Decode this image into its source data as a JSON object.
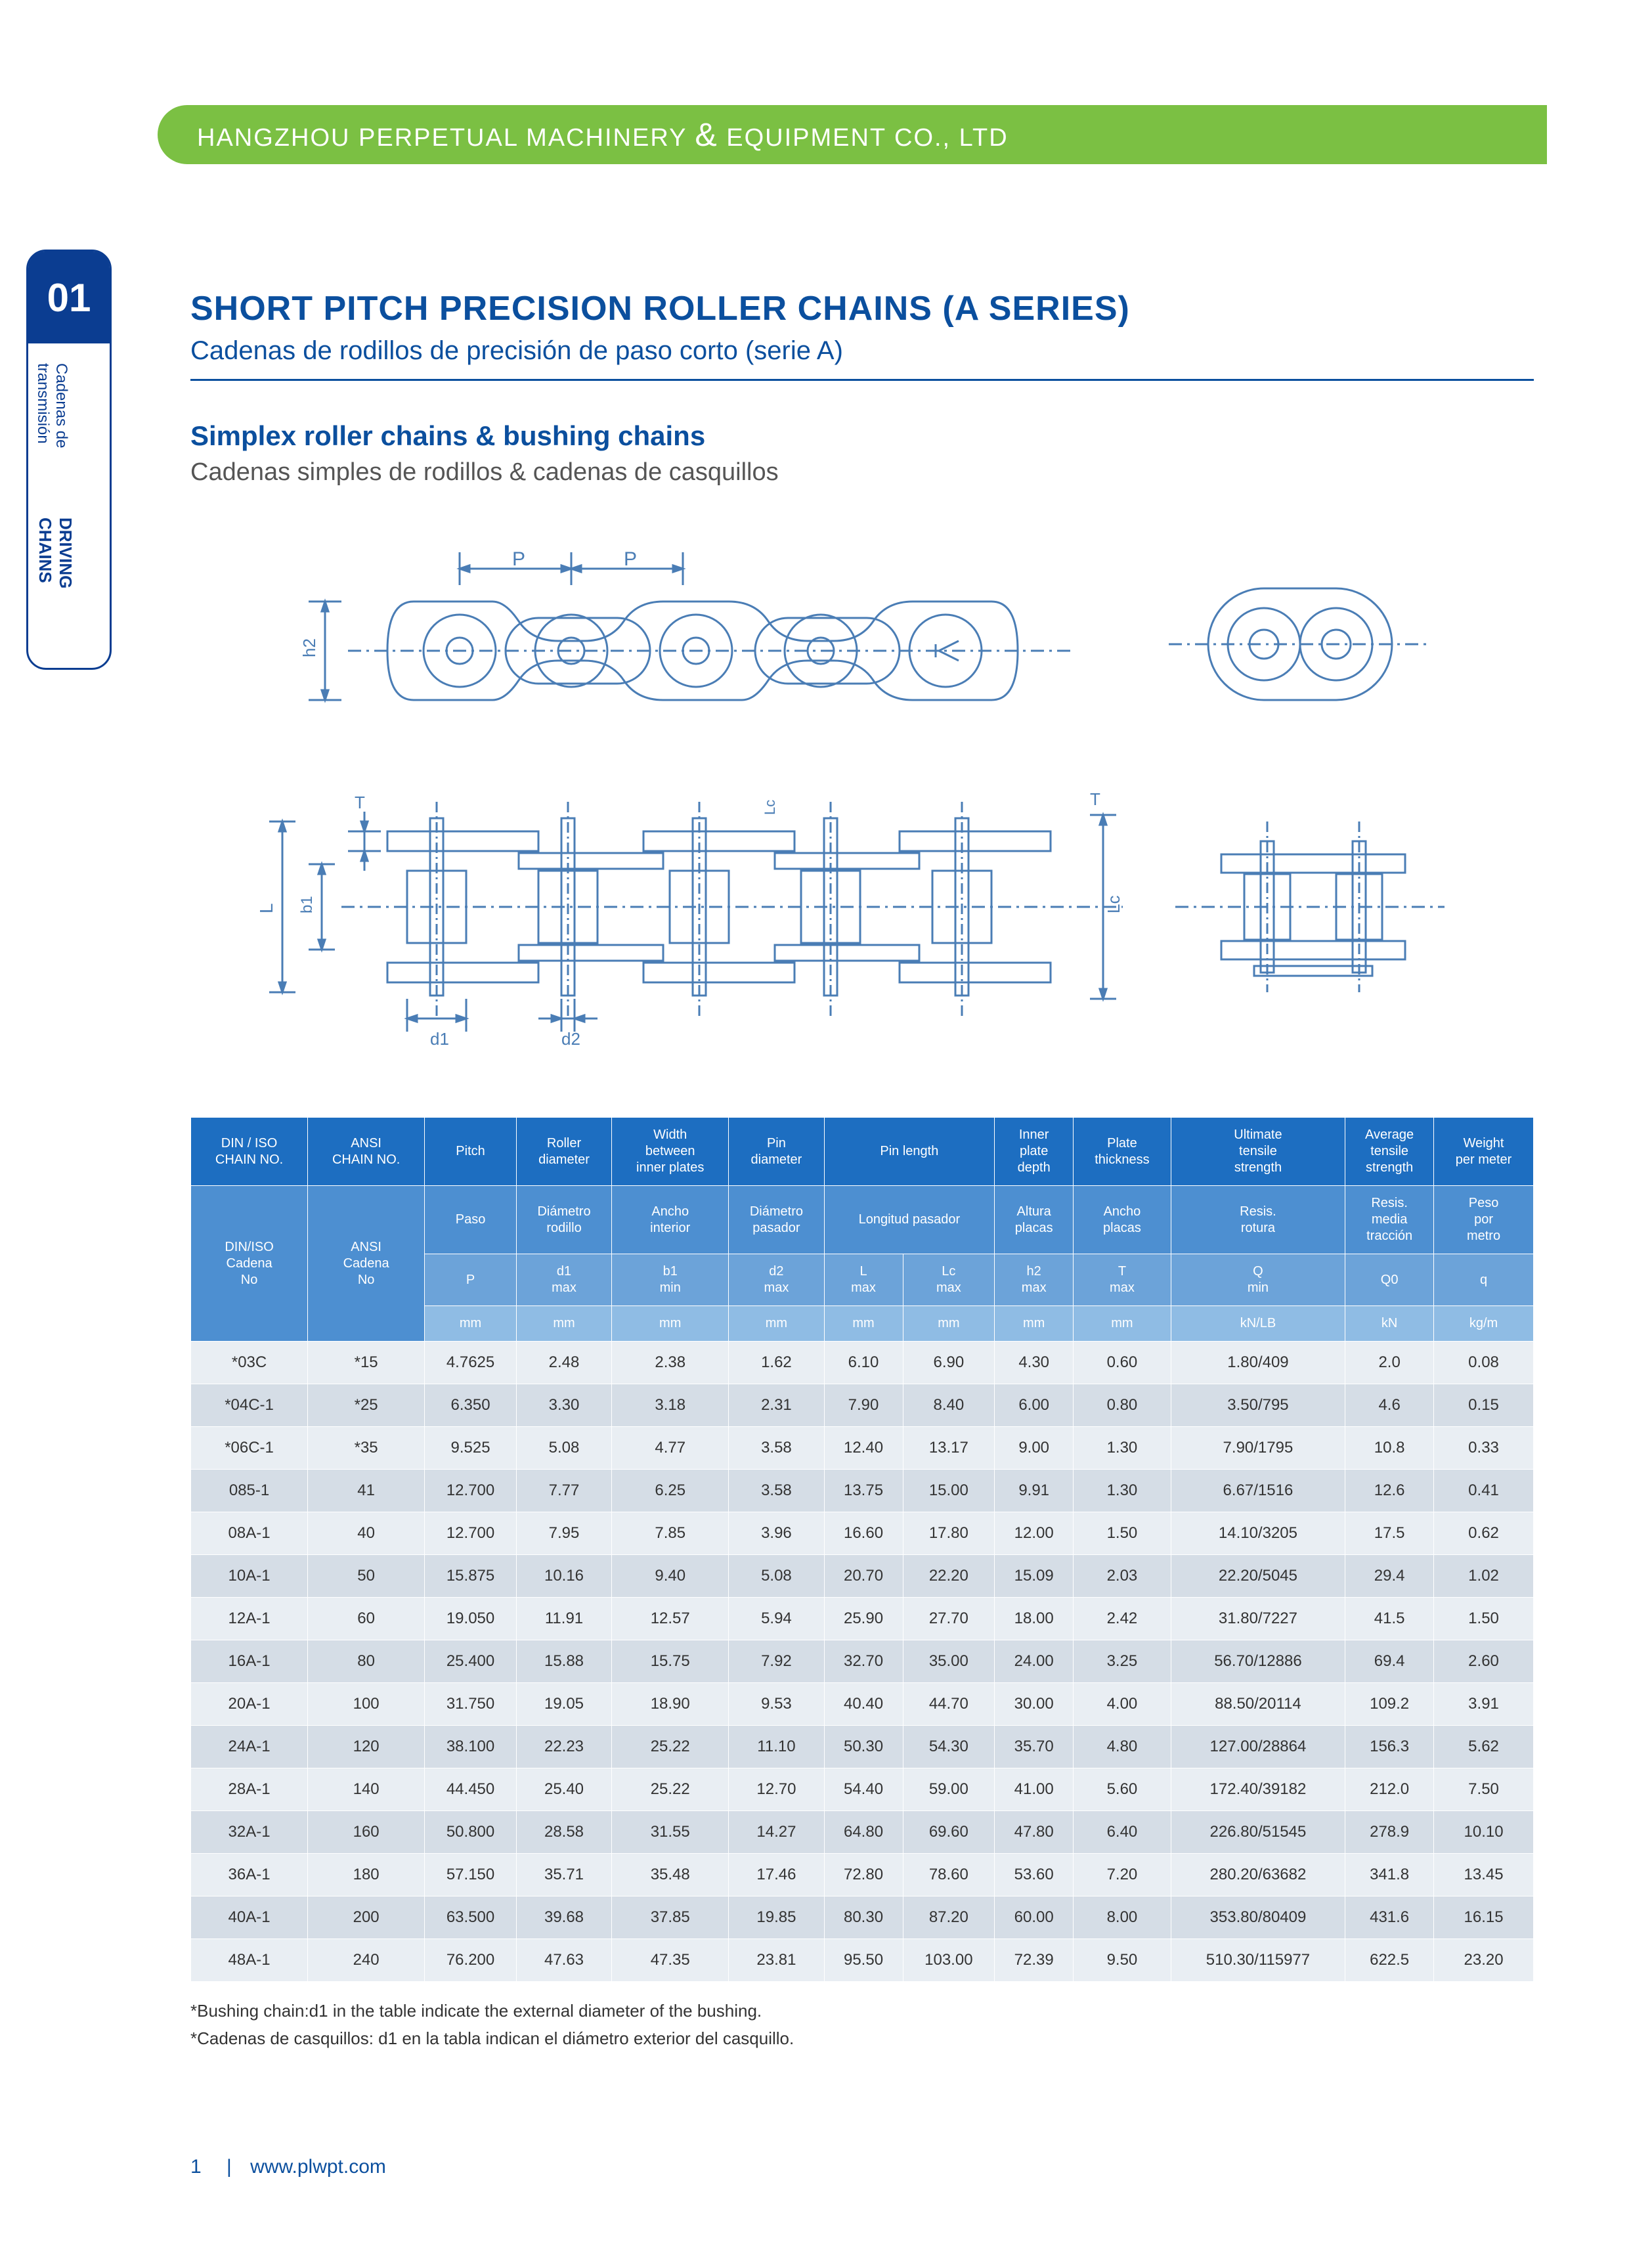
{
  "header": {
    "company_pre": "HANGZHOU PERPETUAL MACHINERY ",
    "company_post": " EQUIPMENT CO., LTD"
  },
  "side": {
    "num": "01",
    "line1": "DRIVING CHAINS",
    "line2": "Cadenas de transmisión"
  },
  "titles": {
    "main": "SHORT PITCH PRECISION ROLLER CHAINS (A SERIES)",
    "main_sub": "Cadenas de rodillos de precisión de paso corto (serie A)",
    "sub": "Simplex roller chains &  bushing chains",
    "sub_sub": "Cadenas simples de rodillos & cadenas de casquillos"
  },
  "diagram_labels": {
    "P": "P",
    "h2": "h2",
    "L": "L",
    "b1": "b1",
    "T": "T",
    "Lc": "Lc",
    "d1": "d1",
    "d2": "d2"
  },
  "table": {
    "headers_en": [
      "DIN / ISO\nCHAIN NO.",
      "ANSI\nCHAIN NO.",
      "Pitch",
      "Roller\ndiameter",
      "Width\nbetween\ninner plates",
      "Pin\ndiameter",
      "Pin length",
      "Inner\nplate\ndepth",
      "Plate\nthickness",
      "Ultimate\ntensile\nstrength",
      "Average\ntensile\nstrength",
      "Weight\nper meter"
    ],
    "headers_es": [
      "DIN/ISO\nCadena\nNo",
      "ANSI\nCadena\nNo",
      "Paso",
      "Diámetro\nrodillo",
      "Ancho\ninterior",
      "Diámetro\npasador",
      "Longitud pasador",
      "Altura\nplacas",
      "Ancho\nplacas",
      "Resis.\nrotura",
      "Resis.\nmedia\ntracción",
      "Peso\npor\nmetro"
    ],
    "symbols": [
      "",
      "",
      "P",
      "d1\nmax",
      "b1\nmin",
      "d2\nmax",
      "L\nmax",
      "Lc\nmax",
      "h2\nmax",
      "T\nmax",
      "Q\nmin",
      "Q0",
      "q"
    ],
    "units": [
      "",
      "",
      "mm",
      "mm",
      "mm",
      "mm",
      "mm",
      "mm",
      "mm",
      "mm",
      "kN/LB",
      "kN",
      "kg/m"
    ],
    "rows": [
      [
        "*03C",
        "*15",
        "4.7625",
        "2.48",
        "2.38",
        "1.62",
        "6.10",
        "6.90",
        "4.30",
        "0.60",
        "1.80/409",
        "2.0",
        "0.08"
      ],
      [
        "*04C-1",
        "*25",
        "6.350",
        "3.30",
        "3.18",
        "2.31",
        "7.90",
        "8.40",
        "6.00",
        "0.80",
        "3.50/795",
        "4.6",
        "0.15"
      ],
      [
        "*06C-1",
        "*35",
        "9.525",
        "5.08",
        "4.77",
        "3.58",
        "12.40",
        "13.17",
        "9.00",
        "1.30",
        "7.90/1795",
        "10.8",
        "0.33"
      ],
      [
        "085-1",
        "41",
        "12.700",
        "7.77",
        "6.25",
        "3.58",
        "13.75",
        "15.00",
        "9.91",
        "1.30",
        "6.67/1516",
        "12.6",
        "0.41"
      ],
      [
        "08A-1",
        "40",
        "12.700",
        "7.95",
        "7.85",
        "3.96",
        "16.60",
        "17.80",
        "12.00",
        "1.50",
        "14.10/3205",
        "17.5",
        "0.62"
      ],
      [
        "10A-1",
        "50",
        "15.875",
        "10.16",
        "9.40",
        "5.08",
        "20.70",
        "22.20",
        "15.09",
        "2.03",
        "22.20/5045",
        "29.4",
        "1.02"
      ],
      [
        "12A-1",
        "60",
        "19.050",
        "11.91",
        "12.57",
        "5.94",
        "25.90",
        "27.70",
        "18.00",
        "2.42",
        "31.80/7227",
        "41.5",
        "1.50"
      ],
      [
        "16A-1",
        "80",
        "25.400",
        "15.88",
        "15.75",
        "7.92",
        "32.70",
        "35.00",
        "24.00",
        "3.25",
        "56.70/12886",
        "69.4",
        "2.60"
      ],
      [
        "20A-1",
        "100",
        "31.750",
        "19.05",
        "18.90",
        "9.53",
        "40.40",
        "44.70",
        "30.00",
        "4.00",
        "88.50/20114",
        "109.2",
        "3.91"
      ],
      [
        "24A-1",
        "120",
        "38.100",
        "22.23",
        "25.22",
        "11.10",
        "50.30",
        "54.30",
        "35.70",
        "4.80",
        "127.00/28864",
        "156.3",
        "5.62"
      ],
      [
        "28A-1",
        "140",
        "44.450",
        "25.40",
        "25.22",
        "12.70",
        "54.40",
        "59.00",
        "41.00",
        "5.60",
        "172.40/39182",
        "212.0",
        "7.50"
      ],
      [
        "32A-1",
        "160",
        "50.800",
        "28.58",
        "31.55",
        "14.27",
        "64.80",
        "69.60",
        "47.80",
        "6.40",
        "226.80/51545",
        "278.9",
        "10.10"
      ],
      [
        "36A-1",
        "180",
        "57.150",
        "35.71",
        "35.48",
        "17.46",
        "72.80",
        "78.60",
        "53.60",
        "7.20",
        "280.20/63682",
        "341.8",
        "13.45"
      ],
      [
        "40A-1",
        "200",
        "63.500",
        "39.68",
        "37.85",
        "19.85",
        "80.30",
        "87.20",
        "60.00",
        "8.00",
        "353.80/80409",
        "431.6",
        "16.15"
      ],
      [
        "48A-1",
        "240",
        "76.200",
        "47.63",
        "47.35",
        "23.81",
        "95.50",
        "103.00",
        "72.39",
        "9.50",
        "510.30/115977",
        "622.5",
        "23.20"
      ]
    ]
  },
  "footnotes": {
    "en": "*Bushing chain:d1 in the table indicate the external diameter of the bushing.",
    "es": "*Cadenas de casquillos: d1 en la tabla indican el diámetro exterior del casquillo."
  },
  "footer": {
    "page": "1",
    "url": "www.plwpt.com"
  },
  "colors": {
    "green": "#7bc043",
    "blue": "#0b4f9e",
    "th1": "#1d6ec1",
    "th2": "#4d8fd1",
    "th3": "#6ca3d9",
    "th4": "#8fbce4",
    "row_odd": "#e9eef3",
    "row_even": "#d5dde6",
    "diagram_stroke": "#4a7db5"
  }
}
